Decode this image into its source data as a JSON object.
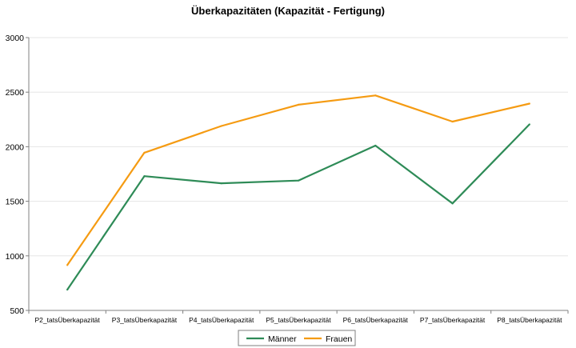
{
  "chart_data": {
    "type": "line",
    "title": "Überkapazitäten (Kapazität - Fertigung)",
    "xlabel": "",
    "ylabel": "",
    "categories": [
      "P2_tatsÜberkapazität",
      "P3_tatsÜberkapazität",
      "P4_tatsÜberkapazität",
      "P5_tatsÜberkapazität",
      "P6_tatsÜberkapazität",
      "P7_tatsÜberkapazität",
      "P8_tatsÜberkapazität"
    ],
    "ylim": [
      500,
      3000
    ],
    "yticks": [
      500,
      1000,
      1500,
      2000,
      2500,
      3000
    ],
    "grid": true,
    "legend_position": "bottom",
    "series": [
      {
        "name": "Männer",
        "color": "#2e8b57",
        "values": [
          690,
          1730,
          1665,
          1690,
          2010,
          1480,
          2205
        ]
      },
      {
        "name": "Frauen",
        "color": "#f59b12",
        "values": [
          915,
          1945,
          2190,
          2385,
          2470,
          2230,
          2395
        ]
      }
    ]
  }
}
